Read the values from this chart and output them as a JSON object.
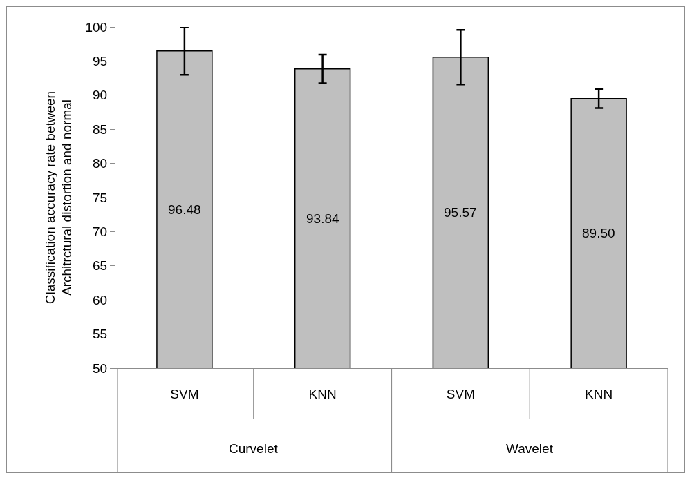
{
  "chart_data": {
    "type": "bar",
    "ylabel": "Classification accuracy rate between Architrctural distortion and normal",
    "categories": [
      "SVM",
      "KNN",
      "SVM",
      "KNN"
    ],
    "values": [
      96.48,
      93.84,
      95.57,
      89.5
    ],
    "value_labels": [
      "96.48",
      "93.84",
      "95.57",
      "89.50"
    ],
    "errors": [
      3.5,
      2.1,
      4.0,
      1.4
    ],
    "color": "#bfbfbf",
    "ylim": [
      50,
      100
    ],
    "yticks": [
      50,
      55,
      60,
      65,
      70,
      75,
      80,
      85,
      90,
      95,
      100
    ],
    "grid": false,
    "legend": false,
    "annotations": [
      "Curvelet",
      "Wavelet"
    ]
  }
}
